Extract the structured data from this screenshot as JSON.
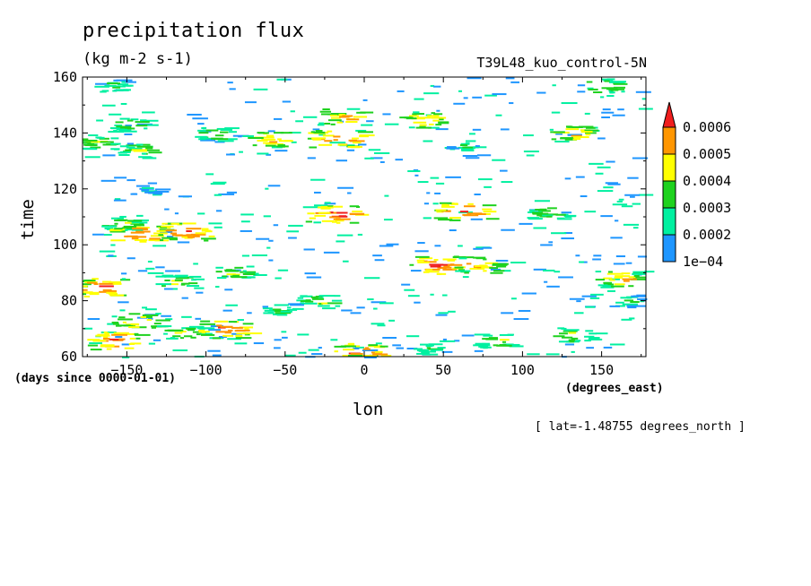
{
  "chart_data": {
    "type": "heatmap",
    "title": "precipitation flux",
    "units": "(kg m-2 s-1)",
    "run_label": "T39L48_kuo_control-5N",
    "xlabel": "lon",
    "ylabel": "time",
    "x_units": "(degrees_east)",
    "y_units": "(days since 0000-01-01)",
    "slice_note": "[ lat=-1.48755 degrees_north ]",
    "xlim": [
      -178,
      178
    ],
    "ylim": [
      60,
      160
    ],
    "xticks": [
      "-150",
      "-100",
      "-50",
      "0",
      "50",
      "100",
      "150"
    ],
    "yticks": [
      "60",
      "80",
      "100",
      "120",
      "140",
      "160"
    ],
    "colorbar": {
      "levels": [
        "1e-04",
        "0.0002",
        "0.0003",
        "0.0004",
        "0.0005",
        "0.0006"
      ],
      "colors": [
        "#1e96ff",
        "#00f0a0",
        "#1ed21e",
        "#ffff00",
        "#ff9600",
        "#f01e1e"
      ]
    },
    "features": [
      {
        "lon": -160,
        "time": 157,
        "level": 2
      },
      {
        "lon": -172,
        "time": 137,
        "level": 3
      },
      {
        "lon": -150,
        "time": 143,
        "level": 3
      },
      {
        "lon": -145,
        "time": 134,
        "level": 3
      },
      {
        "lon": -95,
        "time": 140,
        "level": 3
      },
      {
        "lon": -60,
        "time": 138,
        "level": 4
      },
      {
        "lon": -20,
        "time": 138,
        "level": 5
      },
      {
        "lon": -15,
        "time": 146,
        "level": 4
      },
      {
        "lon": 35,
        "time": 145,
        "level": 4
      },
      {
        "lon": 60,
        "time": 136,
        "level": 2
      },
      {
        "lon": 130,
        "time": 140,
        "level": 4
      },
      {
        "lon": 150,
        "time": 157,
        "level": 3
      },
      {
        "lon": -140,
        "time": 120,
        "level": 1
      },
      {
        "lon": 60,
        "time": 112,
        "level": 5
      },
      {
        "lon": 115,
        "time": 112,
        "level": 3
      },
      {
        "lon": -155,
        "time": 108,
        "level": 3
      },
      {
        "lon": -145,
        "time": 104,
        "level": 5
      },
      {
        "lon": -115,
        "time": 105,
        "level": 5
      },
      {
        "lon": -20,
        "time": 111,
        "level": 5
      },
      {
        "lon": 45,
        "time": 93,
        "level": 5
      },
      {
        "lon": 70,
        "time": 93,
        "level": 4
      },
      {
        "lon": -168,
        "time": 85,
        "level": 5
      },
      {
        "lon": -120,
        "time": 87,
        "level": 3
      },
      {
        "lon": -85,
        "time": 90,
        "level": 3
      },
      {
        "lon": -30,
        "time": 80,
        "level": 3
      },
      {
        "lon": -55,
        "time": 77,
        "level": 2
      },
      {
        "lon": -145,
        "time": 73,
        "level": 4
      },
      {
        "lon": -115,
        "time": 69,
        "level": 3
      },
      {
        "lon": -90,
        "time": 70,
        "level": 5
      },
      {
        "lon": -160,
        "time": 66,
        "level": 5
      },
      {
        "lon": -5,
        "time": 62,
        "level": 5
      },
      {
        "lon": 40,
        "time": 63,
        "level": 2
      },
      {
        "lon": 80,
        "time": 66,
        "level": 3
      },
      {
        "lon": 130,
        "time": 68,
        "level": 3
      },
      {
        "lon": 165,
        "time": 80,
        "level": 2
      },
      {
        "lon": 160,
        "time": 88,
        "level": 4
      }
    ]
  }
}
